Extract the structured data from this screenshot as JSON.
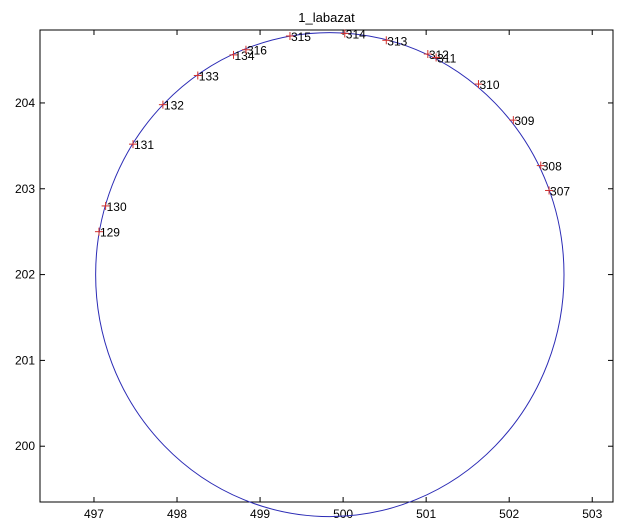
{
  "chart_data": {
    "type": "scatter",
    "title": "1_labazat",
    "xlabel": "",
    "ylabel": "",
    "xlim": [
      496.35,
      503.25
    ],
    "ylim": [
      199.35,
      204.85
    ],
    "xticks": [
      497,
      498,
      499,
      500,
      501,
      502,
      503
    ],
    "yticks": [
      200,
      201,
      202,
      203,
      204
    ],
    "grid": false,
    "legend": "none",
    "colors": {
      "axes": "#000000",
      "circle": "#2b2bb5",
      "markers": "#d0312d",
      "labels": "#000000"
    },
    "circle": {
      "center": [
        499.84,
        202.0
      ],
      "radius": 2.82
    },
    "points": [
      {
        "label": "129",
        "x": 497.06,
        "y": 202.5
      },
      {
        "label": "130",
        "x": 497.14,
        "y": 202.8
      },
      {
        "label": "131",
        "x": 497.47,
        "y": 203.52
      },
      {
        "label": "132",
        "x": 497.83,
        "y": 203.98
      },
      {
        "label": "133",
        "x": 498.25,
        "y": 204.32
      },
      {
        "label": "134",
        "x": 498.68,
        "y": 204.56
      },
      {
        "label": "316",
        "x": 498.83,
        "y": 204.62
      },
      {
        "label": "315",
        "x": 499.36,
        "y": 204.78
      },
      {
        "label": "314",
        "x": 500.02,
        "y": 204.81
      },
      {
        "label": "313",
        "x": 500.52,
        "y": 204.73
      },
      {
        "label": "312",
        "x": 501.02,
        "y": 204.57
      },
      {
        "label": "311",
        "x": 501.12,
        "y": 204.53
      },
      {
        "label": "310",
        "x": 501.63,
        "y": 204.22
      },
      {
        "label": "309",
        "x": 502.05,
        "y": 203.8
      },
      {
        "label": "308",
        "x": 502.38,
        "y": 203.27
      },
      {
        "label": "307",
        "x": 502.48,
        "y": 202.98
      }
    ]
  }
}
